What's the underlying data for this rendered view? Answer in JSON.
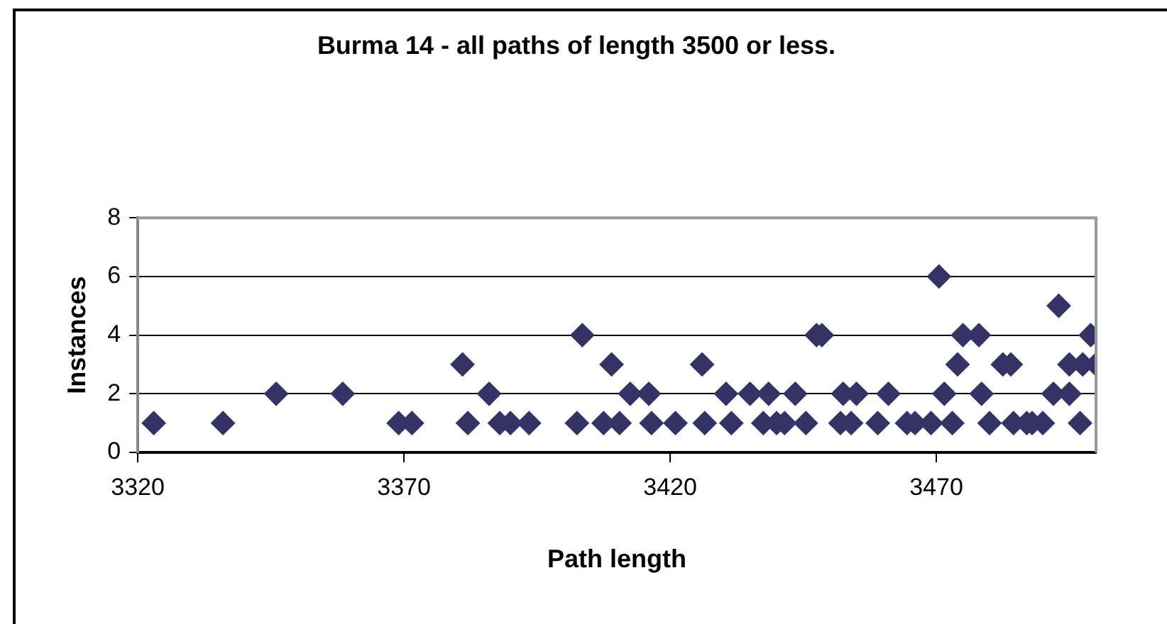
{
  "chart_data": {
    "type": "scatter",
    "title": "Burma 14 - all paths of length 3500 or less.",
    "xlabel": "Path length",
    "ylabel": "Instances",
    "x": [
      3323,
      3336,
      3346,
      3358.5,
      3369,
      3371.5,
      3381,
      3382,
      3386,
      3388,
      3390,
      3393.5,
      3403.5,
      3402.5,
      3407.5,
      3409,
      3410.5,
      3412.5,
      3416,
      3416.5,
      3421,
      3426,
      3426.5,
      3430.5,
      3431.5,
      3435,
      3437.5,
      3438.5,
      3440,
      3441.5,
      3443.5,
      3445.5,
      3447.5,
      3448.5,
      3452,
      3452.5,
      3454,
      3455,
      3459,
      3461,
      3464.5,
      3466,
      3469,
      3470.5,
      3471.5,
      3473,
      3474,
      3475,
      3478,
      3478.5,
      3480,
      3482.5,
      3484,
      3484.5,
      3487,
      3488,
      3490,
      3492,
      3493,
      3495,
      3495,
      3497,
      3497.5,
      3499,
      3500
    ],
    "values": [
      1,
      1,
      2,
      2,
      1,
      1,
      3,
      1,
      2,
      1,
      1,
      1,
      4,
      1,
      1,
      3,
      1,
      2,
      2,
      1,
      1,
      3,
      1,
      2,
      1,
      2,
      1,
      2,
      1,
      1,
      2,
      1,
      4,
      4,
      1,
      2,
      1,
      2,
      1,
      2,
      1,
      1,
      1,
      6,
      2,
      1,
      3,
      4,
      4,
      2,
      1,
      3,
      3,
      1,
      1,
      1,
      1,
      2,
      5,
      2,
      3,
      1,
      3,
      4,
      3
    ],
    "color": "#333366",
    "marker": "diamond",
    "xlim": [
      3320,
      3500
    ],
    "xticks": [
      3320,
      3370,
      3420,
      3470
    ],
    "ylim": [
      0,
      8
    ],
    "yticks": [
      0,
      2,
      4,
      6,
      8
    ],
    "grid": "y",
    "legend": false
  }
}
